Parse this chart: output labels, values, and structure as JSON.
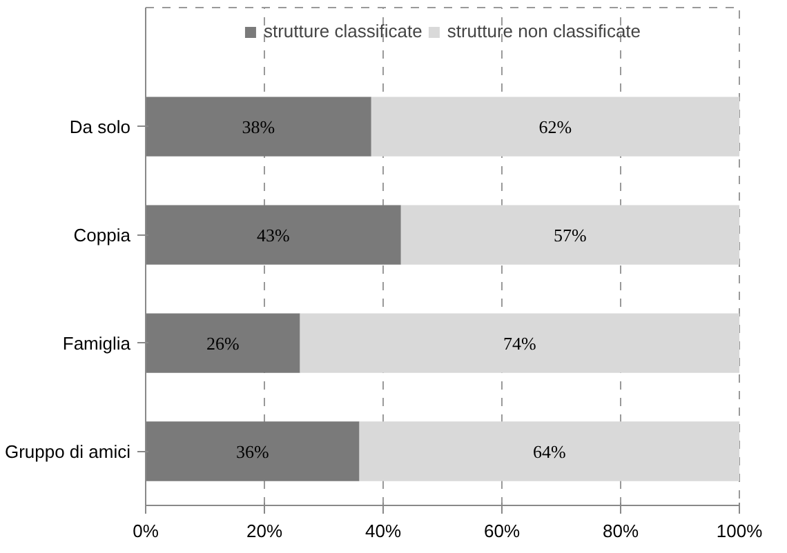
{
  "chart_data": {
    "type": "bar",
    "orientation": "horizontal",
    "stacked": true,
    "categories": [
      "Da solo",
      "Coppia",
      "Famiglia",
      "Gruppo di amici"
    ],
    "series": [
      {
        "name": "strutture classificate",
        "color": "#7a7a7a",
        "values": [
          38,
          43,
          26,
          36
        ],
        "value_labels": [
          "38%",
          "43%",
          "26%",
          "36%"
        ]
      },
      {
        "name": "strutture non classificate",
        "color": "#d9d9d9",
        "values": [
          62,
          57,
          74,
          64
        ],
        "value_labels": [
          "62%",
          "57%",
          "74%",
          "64%"
        ]
      }
    ],
    "xlim": [
      0,
      100
    ],
    "xticks": [
      {
        "value": 0,
        "label": "0%"
      },
      {
        "value": 20,
        "label": "20%"
      },
      {
        "value": 40,
        "label": "40%"
      },
      {
        "value": 60,
        "label": "60%"
      },
      {
        "value": 80,
        "label": "80%"
      },
      {
        "value": 100,
        "label": "100%"
      }
    ],
    "grid": "x",
    "legend": "top"
  }
}
